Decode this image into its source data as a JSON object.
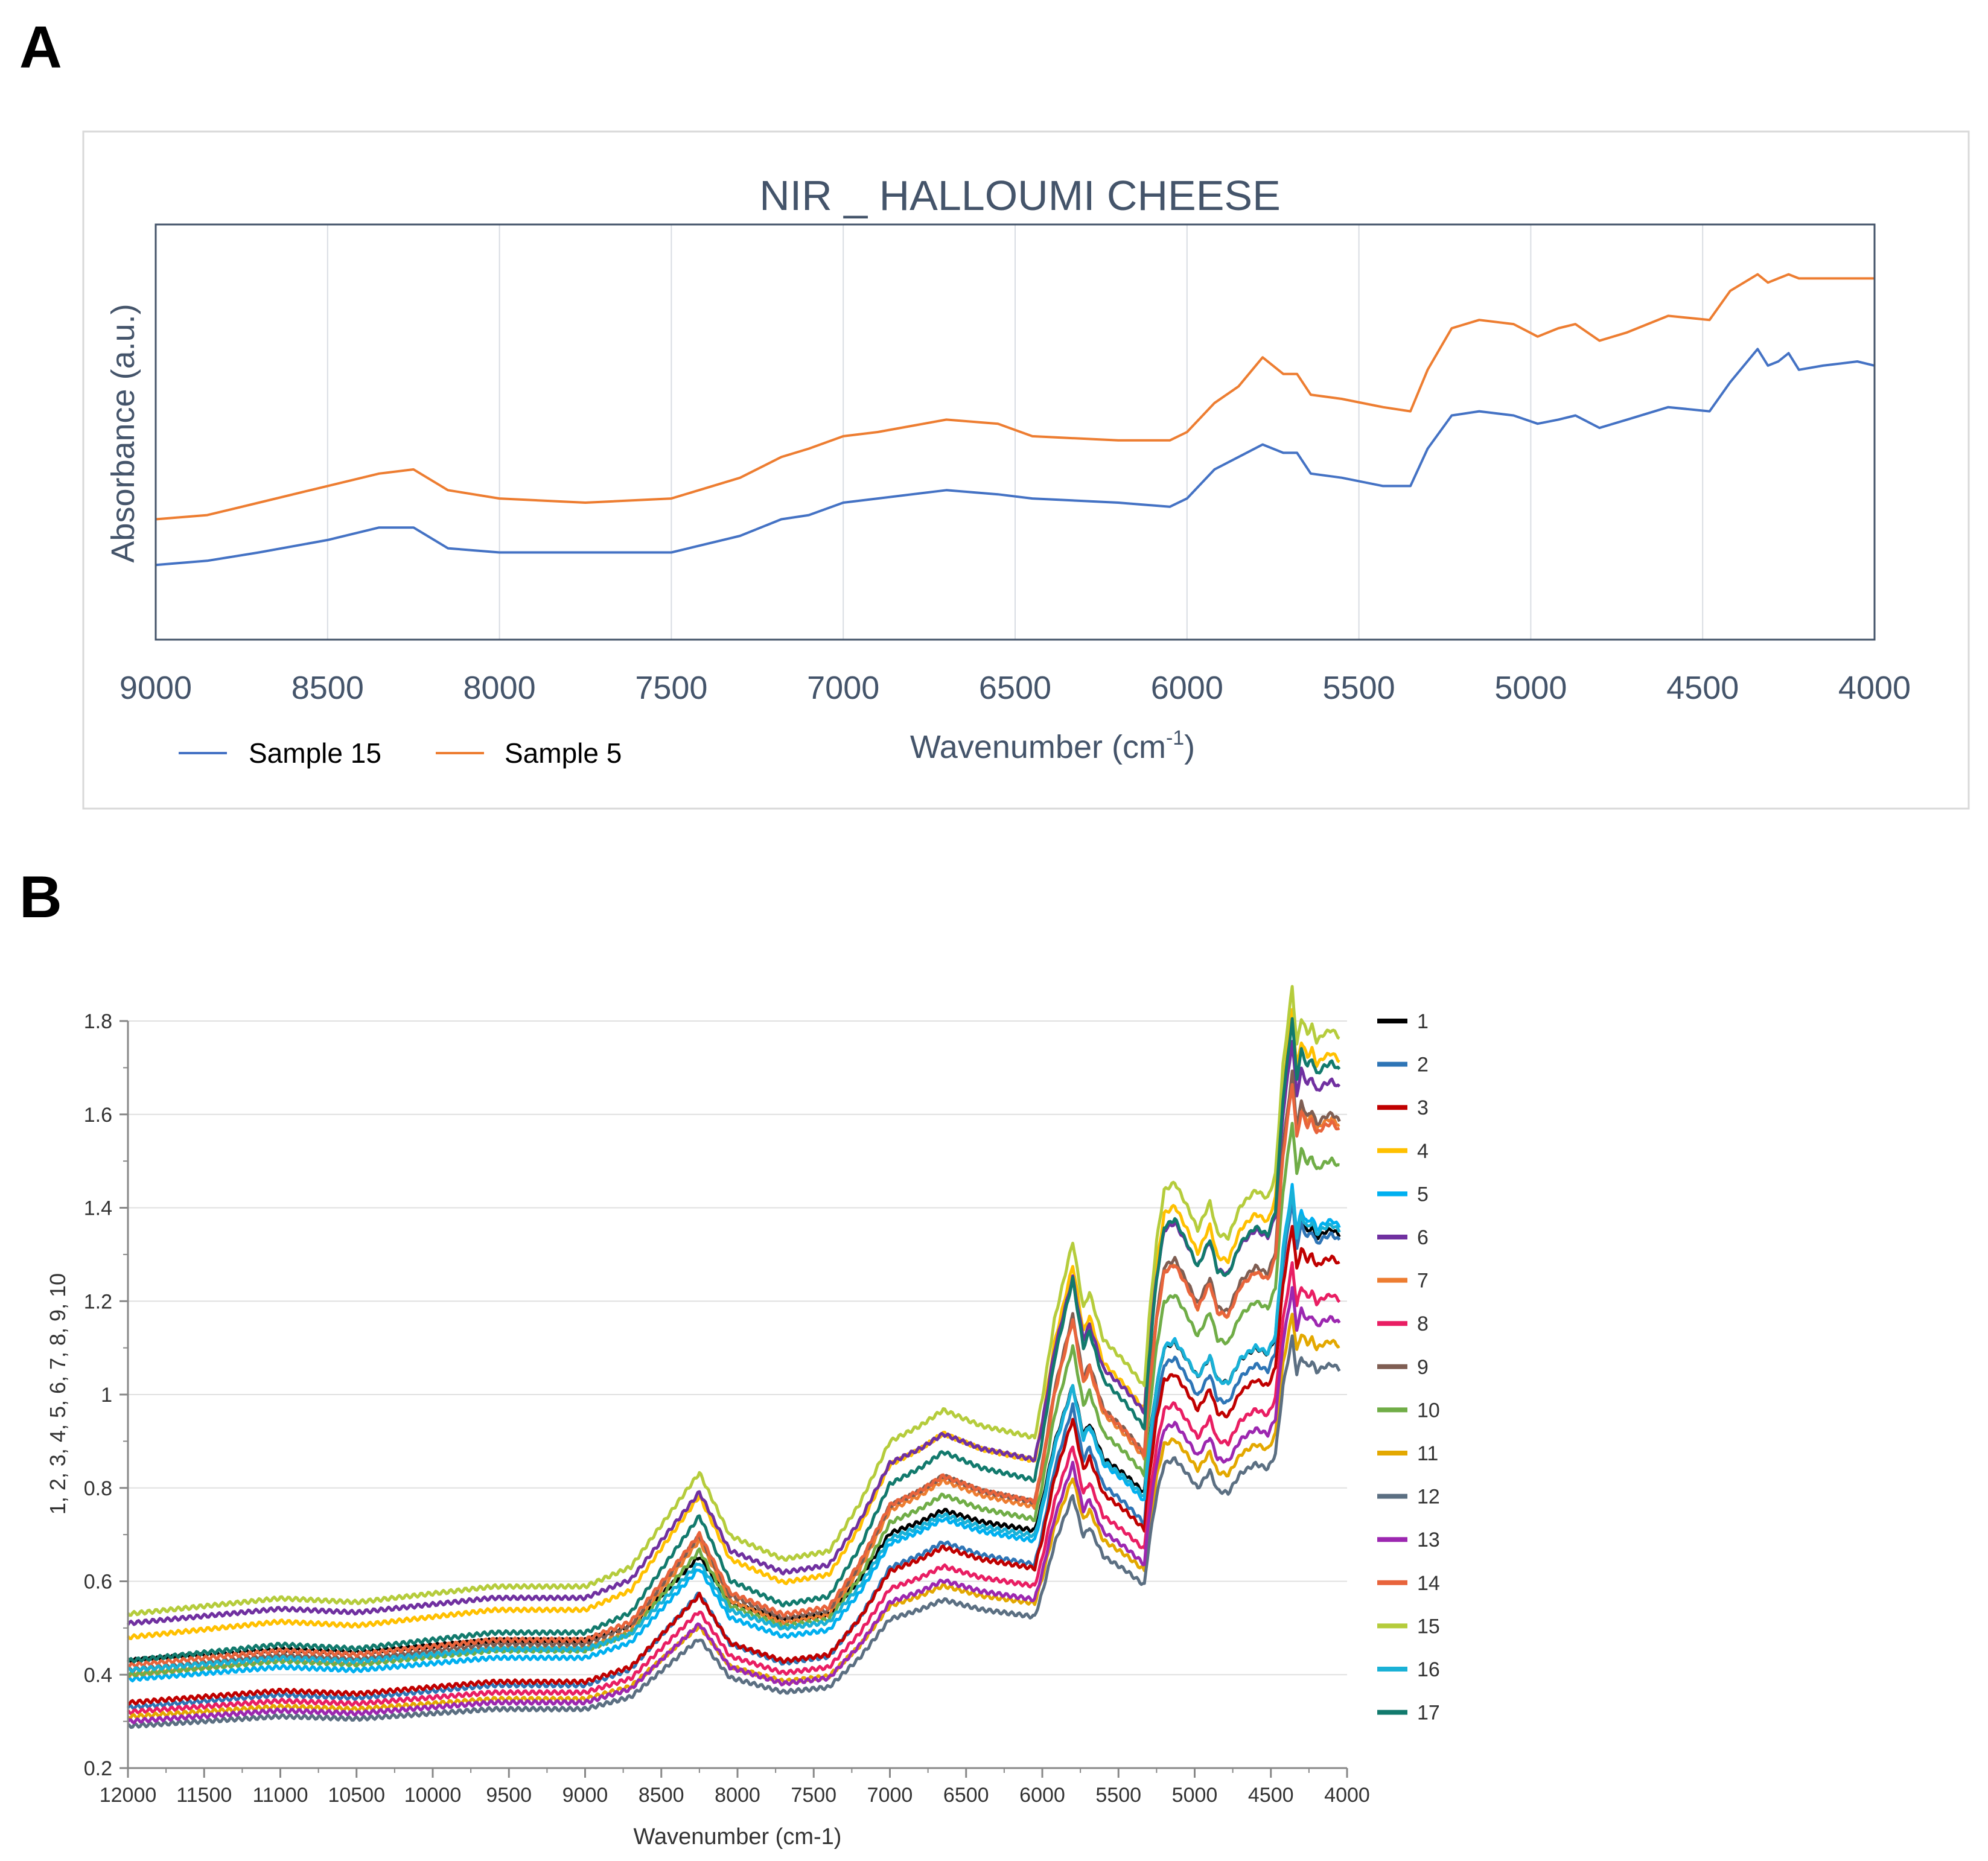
{
  "panels": [
    {
      "label": "A"
    },
    {
      "label": "B"
    }
  ],
  "chart_data": [
    {
      "type": "line",
      "title": "NIR _ HALLOUMI CHEESE",
      "xlabel_main": "Wavenumber (cm",
      "xlabel_sup": "-1",
      "xlabel_tail": ")",
      "ylabel": "Absorbance (a.u.)",
      "xlim": [
        9000,
        4000
      ],
      "x_ticks": [
        9000,
        8500,
        8000,
        7500,
        7000,
        6500,
        6000,
        5500,
        5000,
        4500,
        4000
      ],
      "y_ticks_shown": false,
      "ylim": [
        0,
        1
      ],
      "grid": "vertical",
      "legend": "bottom-left",
      "colors": {
        "frame": "#44546a",
        "grid": "#d9dde3",
        "text": "#44546a"
      },
      "series": [
        {
          "name": "Sample 15",
          "color": "#4472c4",
          "x": [
            9000,
            8850,
            8700,
            8500,
            8350,
            8250,
            8150,
            8000,
            7750,
            7500,
            7300,
            7180,
            7100,
            7000,
            6900,
            6700,
            6550,
            6450,
            6200,
            6050,
            6000,
            5920,
            5850,
            5780,
            5720,
            5680,
            5640,
            5550,
            5430,
            5350,
            5300,
            5230,
            5150,
            5050,
            4980,
            4920,
            4870,
            4800,
            4720,
            4600,
            4480,
            4420,
            4340,
            4310,
            4280,
            4250,
            4220,
            4150,
            4050,
            4000
          ],
          "y": [
            0.18,
            0.19,
            0.21,
            0.24,
            0.27,
            0.27,
            0.22,
            0.21,
            0.21,
            0.21,
            0.25,
            0.29,
            0.3,
            0.33,
            0.34,
            0.36,
            0.35,
            0.34,
            0.33,
            0.32,
            0.34,
            0.41,
            0.44,
            0.47,
            0.45,
            0.45,
            0.4,
            0.39,
            0.37,
            0.37,
            0.46,
            0.54,
            0.55,
            0.54,
            0.52,
            0.53,
            0.54,
            0.51,
            0.53,
            0.56,
            0.55,
            0.62,
            0.7,
            0.66,
            0.67,
            0.69,
            0.65,
            0.66,
            0.67,
            0.66
          ]
        },
        {
          "name": "Sample 5",
          "color": "#ed7d31",
          "x": [
            9000,
            8850,
            8700,
            8500,
            8350,
            8250,
            8150,
            8000,
            7750,
            7500,
            7300,
            7180,
            7100,
            7000,
            6900,
            6700,
            6550,
            6450,
            6200,
            6050,
            6000,
            5920,
            5850,
            5780,
            5720,
            5680,
            5640,
            5550,
            5430,
            5350,
            5300,
            5230,
            5150,
            5050,
            4980,
            4920,
            4870,
            4800,
            4720,
            4600,
            4480,
            4420,
            4340,
            4310,
            4280,
            4250,
            4220,
            4150,
            4050,
            4000
          ],
          "y": [
            0.29,
            0.3,
            0.33,
            0.37,
            0.4,
            0.41,
            0.36,
            0.34,
            0.33,
            0.34,
            0.39,
            0.44,
            0.46,
            0.49,
            0.5,
            0.53,
            0.52,
            0.49,
            0.48,
            0.48,
            0.5,
            0.57,
            0.61,
            0.68,
            0.64,
            0.64,
            0.59,
            0.58,
            0.56,
            0.55,
            0.65,
            0.75,
            0.77,
            0.76,
            0.73,
            0.75,
            0.76,
            0.72,
            0.74,
            0.78,
            0.77,
            0.84,
            0.88,
            0.86,
            0.87,
            0.88,
            0.87,
            0.87,
            0.87,
            0.87
          ]
        }
      ]
    },
    {
      "type": "line",
      "title": "",
      "xlabel": "Wavenumber (cm-1)",
      "ylabel": "1, 2, 3, 4, 5, 6, 7, 8, 9, 10",
      "xlim": [
        12000,
        4000
      ],
      "ylim": [
        0.2,
        1.8
      ],
      "x_ticks": [
        12000,
        11500,
        11000,
        10500,
        10000,
        9500,
        9000,
        8500,
        8000,
        7500,
        7000,
        6500,
        6000,
        5500,
        5000,
        4500,
        4000
      ],
      "y_ticks": [
        0.2,
        0.4,
        0.6,
        0.8,
        1,
        1.2,
        1.4,
        1.6,
        1.8
      ],
      "y_tick_labels": [
        "0.2",
        "0.4",
        "0.6",
        "0.8",
        "1",
        "1.2",
        "1.4",
        "1.6",
        "1.8"
      ],
      "grid": "horizontal",
      "legend": "right",
      "colors": {
        "axis": "#888888",
        "grid": "#e0e0e0",
        "text": "#333333"
      },
      "template_x": [
        12000,
        11000,
        10500,
        9600,
        9000,
        8700,
        8400,
        8250,
        8050,
        7700,
        7400,
        7200,
        7000,
        6800,
        6650,
        6400,
        6050,
        6000,
        5920,
        5800,
        5730,
        5690,
        5600,
        5450,
        5330,
        5300,
        5250,
        5200,
        5130,
        5050,
        4980,
        4900,
        4850,
        4780,
        4700,
        4600,
        4520,
        4470,
        4420,
        4360,
        4330,
        4300,
        4260,
        4230,
        4200,
        4150,
        4100,
        4050
      ],
      "template_t": [
        0.0,
        0.04,
        0.03,
        0.07,
        0.07,
        0.12,
        0.28,
        0.36,
        0.2,
        0.14,
        0.16,
        0.28,
        0.44,
        0.48,
        0.52,
        0.48,
        0.45,
        0.55,
        0.75,
        0.95,
        0.78,
        0.82,
        0.7,
        0.64,
        0.58,
        0.75,
        0.95,
        1.08,
        1.1,
        1.04,
        0.98,
        1.05,
        0.97,
        0.96,
        1.04,
        1.08,
        1.06,
        1.12,
        1.4,
        1.6,
        1.45,
        1.52,
        1.48,
        1.5,
        1.46,
        1.48,
        1.49,
        1.47
      ],
      "series": [
        {
          "name": "1",
          "color": "#000000",
          "base": 0.43,
          "scale": 0.62
        },
        {
          "name": "2",
          "color": "#2e75b6",
          "base": 0.33,
          "scale": 0.68
        },
        {
          "name": "3",
          "color": "#c00000",
          "base": 0.34,
          "scale": 0.64
        },
        {
          "name": "4",
          "color": "#ffc000",
          "base": 0.48,
          "scale": 0.84
        },
        {
          "name": "5",
          "color": "#00b0f0",
          "base": 0.39,
          "scale": 0.66
        },
        {
          "name": "6",
          "color": "#7030a0",
          "base": 0.51,
          "scale": 0.78
        },
        {
          "name": "7",
          "color": "#ed7d31",
          "base": 0.4,
          "scale": 0.8
        },
        {
          "name": "8",
          "color": "#e91e63",
          "base": 0.32,
          "scale": 0.6
        },
        {
          "name": "9",
          "color": "#7f5e53",
          "base": 0.41,
          "scale": 0.8
        },
        {
          "name": "10",
          "color": "#70ad47",
          "base": 0.4,
          "scale": 0.74
        },
        {
          "name": "11",
          "color": "#e3a800",
          "base": 0.31,
          "scale": 0.54
        },
        {
          "name": "12",
          "color": "#5b6f82",
          "base": 0.29,
          "scale": 0.52
        },
        {
          "name": "13",
          "color": "#9c27b0",
          "base": 0.3,
          "scale": 0.58
        },
        {
          "name": "14",
          "color": "#e8643c",
          "base": 0.42,
          "scale": 0.78
        },
        {
          "name": "15",
          "color": "#b5cc3c",
          "base": 0.53,
          "scale": 0.84
        },
        {
          "name": "16",
          "color": "#1ab1d6",
          "base": 0.41,
          "scale": 0.64
        },
        {
          "name": "17",
          "color": "#127a6d",
          "base": 0.43,
          "scale": 0.86
        }
      ]
    }
  ]
}
